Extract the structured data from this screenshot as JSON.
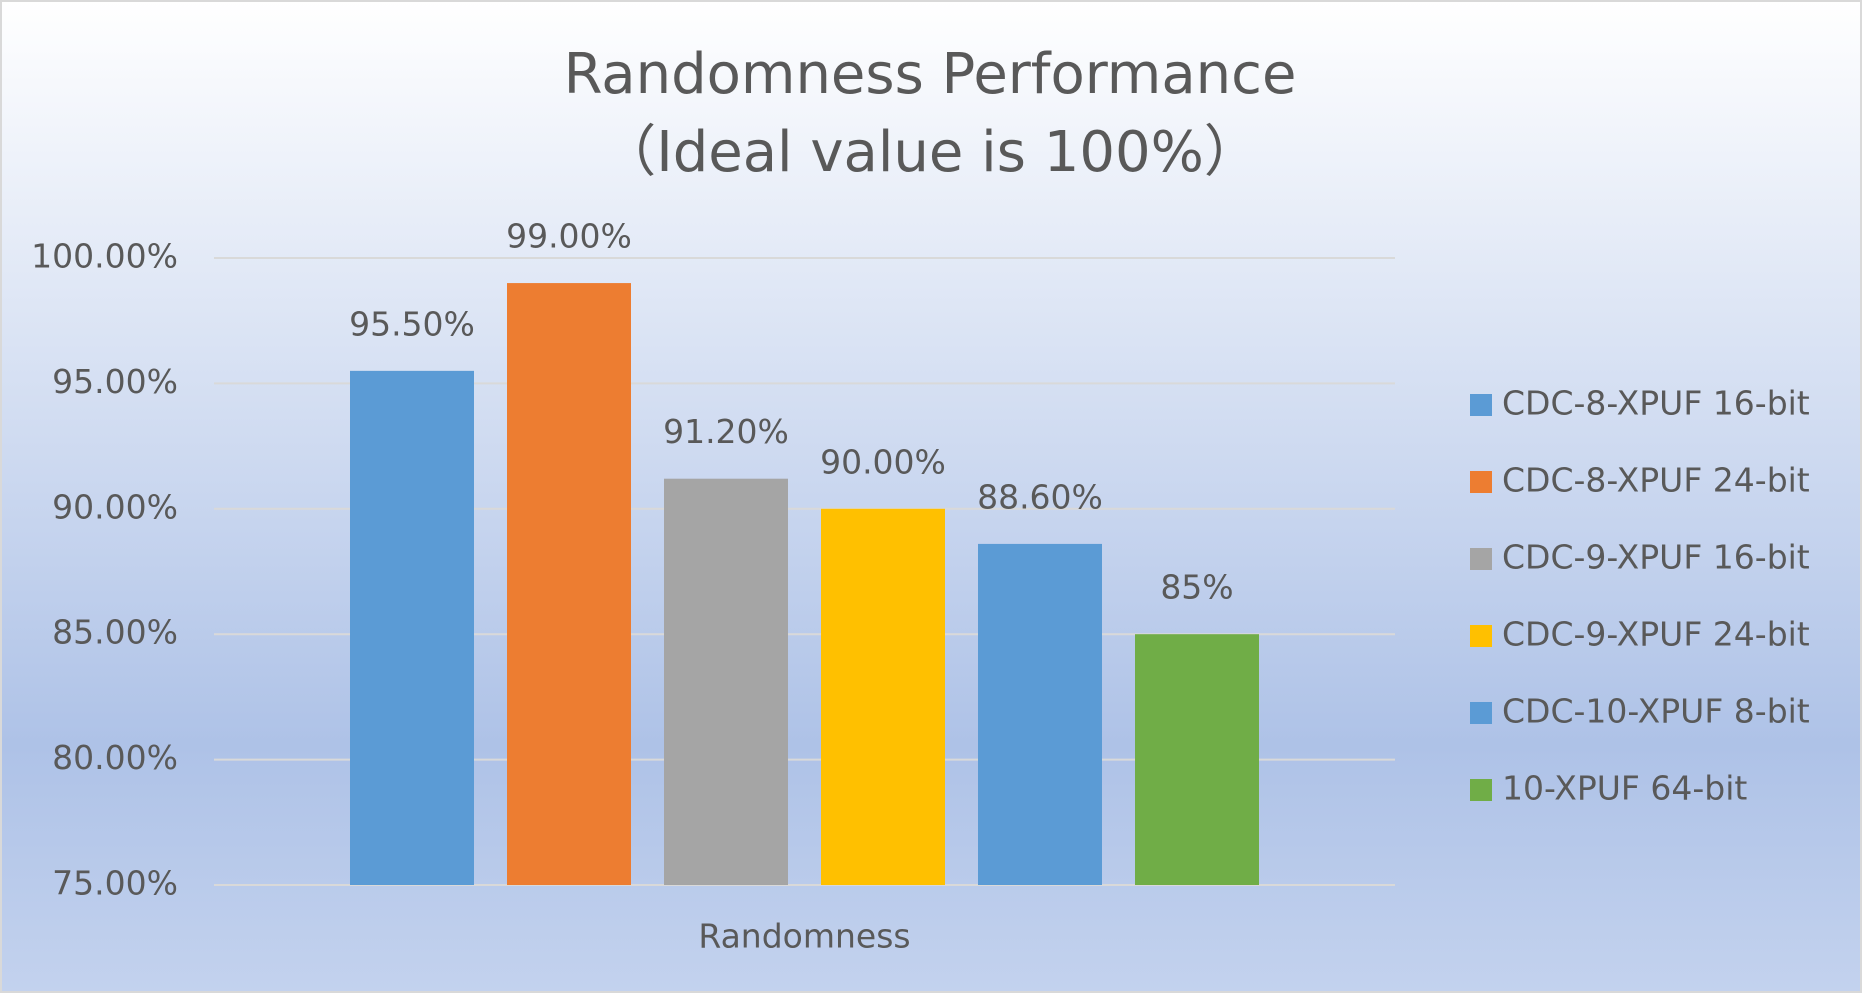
{
  "chart_data": {
    "type": "bar",
    "title": "Randomness Performance",
    "subtitle": "（Ideal value is 100%）",
    "categories": [
      "Randomness"
    ],
    "series": [
      {
        "name": "CDC-8-XPUF 16-bit",
        "color": "#5b9bd5",
        "values": [
          95.5
        ],
        "value_labels": [
          "95.50%"
        ]
      },
      {
        "name": "CDC-8-XPUF 24-bit",
        "color": "#ed7d31",
        "values": [
          99
        ],
        "value_labels": [
          "99.00%"
        ]
      },
      {
        "name": "CDC-9-XPUF 16-bit",
        "color": "#a5a5a5",
        "values": [
          91.2
        ],
        "value_labels": [
          "91.20%"
        ]
      },
      {
        "name": "CDC-9-XPUF 24-bit",
        "color": "#ffc000",
        "values": [
          90
        ],
        "value_labels": [
          "90.00%"
        ]
      },
      {
        "name": "CDC-10-XPUF 8-bit",
        "color": "#5b9bd5",
        "values": [
          88.6
        ],
        "value_labels": [
          "88.60%"
        ]
      },
      {
        "name": "10-XPUF 64-bit",
        "color": "#70ad47",
        "values": [
          85
        ],
        "value_labels": [
          "85%"
        ]
      }
    ],
    "ylim": [
      75,
      100
    ],
    "yticks": [
      {
        "value": 75,
        "label": "75.00%"
      },
      {
        "value": 80,
        "label": "80.00%"
      },
      {
        "value": 85,
        "label": "85.00%"
      },
      {
        "value": 90,
        "label": "90.00%"
      },
      {
        "value": 95,
        "label": "95.00%"
      },
      {
        "value": 100,
        "label": "100.00%"
      }
    ],
    "grid": true,
    "legend": "right"
  }
}
